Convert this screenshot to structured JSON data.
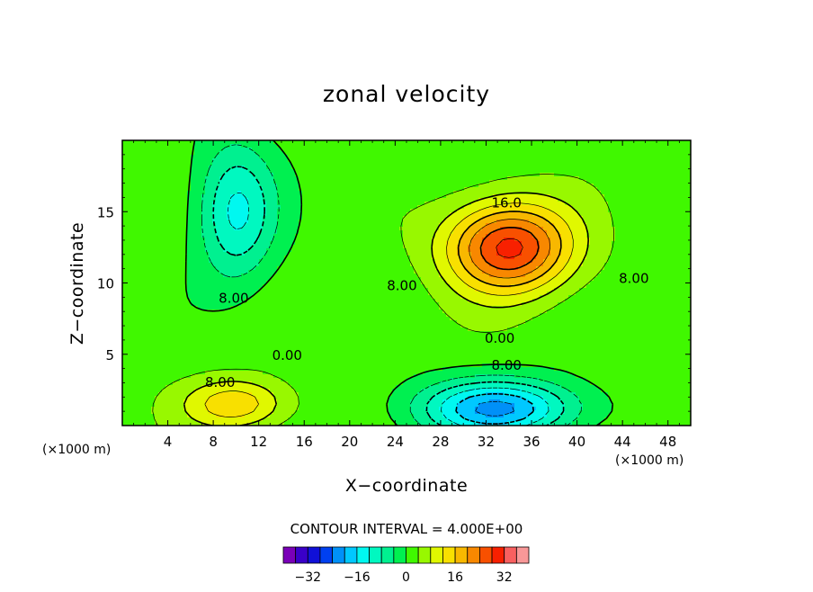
{
  "chart_data": {
    "type": "heatmap",
    "title": "zonal velocity",
    "xlabel": "X−coordinate",
    "ylabel": "Z−coordinate",
    "x_unit": "(×1000 m)",
    "y_unit": "(×1000 m)",
    "xlim": [
      0,
      50
    ],
    "ylim": [
      0,
      20
    ],
    "x_ticks": [
      4,
      8,
      12,
      16,
      20,
      24,
      28,
      32,
      36,
      40,
      44,
      48
    ],
    "y_ticks": [
      5,
      10,
      15
    ],
    "contour_interval_label": "CONTOUR INTERVAL = 4.000E+00",
    "contour_interval": 4,
    "contour_labels": [
      {
        "text": "16.0",
        "x": 33.8,
        "y": 15.3
      },
      {
        "text": "8.00",
        "x": 24.6,
        "y": 9.5
      },
      {
        "text": "8.00",
        "x": 45.0,
        "y": 10.0
      },
      {
        "text": "8.00",
        "x": 9.8,
        "y": 8.6
      },
      {
        "text": "0.00",
        "x": 14.5,
        "y": 4.6
      },
      {
        "text": "0.00",
        "x": 33.2,
        "y": 5.8
      },
      {
        "text": "8.00",
        "x": 33.8,
        "y": 3.9
      },
      {
        "text": "8.00",
        "x": 8.6,
        "y": 2.7
      }
    ],
    "field_features": [
      {
        "kind": "max",
        "x": 34,
        "y": 12.5,
        "value": 28,
        "sx": 5.5,
        "sy": 3.2
      },
      {
        "kind": "max",
        "x": 10,
        "y": 1.5,
        "value": 14,
        "sx": 4.5,
        "sy": 1.8
      },
      {
        "kind": "min",
        "x": 33,
        "y": 1.2,
        "value": -22,
        "sx": 7,
        "sy": 2.0
      },
      {
        "kind": "min",
        "x": 10,
        "y": 15,
        "value": -14,
        "sx": 3.5,
        "sy": 5
      }
    ],
    "background_value": 2,
    "colorbar": {
      "levels": [
        -36,
        -32,
        -28,
        -24,
        -20,
        -16,
        -12,
        -8,
        -4,
        0,
        4,
        8,
        12,
        16,
        20,
        24,
        28,
        32,
        36
      ],
      "tick_labels": [
        "−32",
        "−16",
        "0",
        "16",
        "32"
      ],
      "tick_values": [
        -32,
        -16,
        0,
        16,
        32
      ],
      "colors": [
        "#7a00b8",
        "#3a00c8",
        "#1010d8",
        "#0040f0",
        "#0090f8",
        "#00c8ff",
        "#00f8f0",
        "#00f8c0",
        "#00f090",
        "#00f050",
        "#40f800",
        "#98f800",
        "#e0f800",
        "#f8e000",
        "#f8b800",
        "#f88800",
        "#f85000",
        "#f82000",
        "#f86060",
        "#f89898"
      ]
    }
  }
}
